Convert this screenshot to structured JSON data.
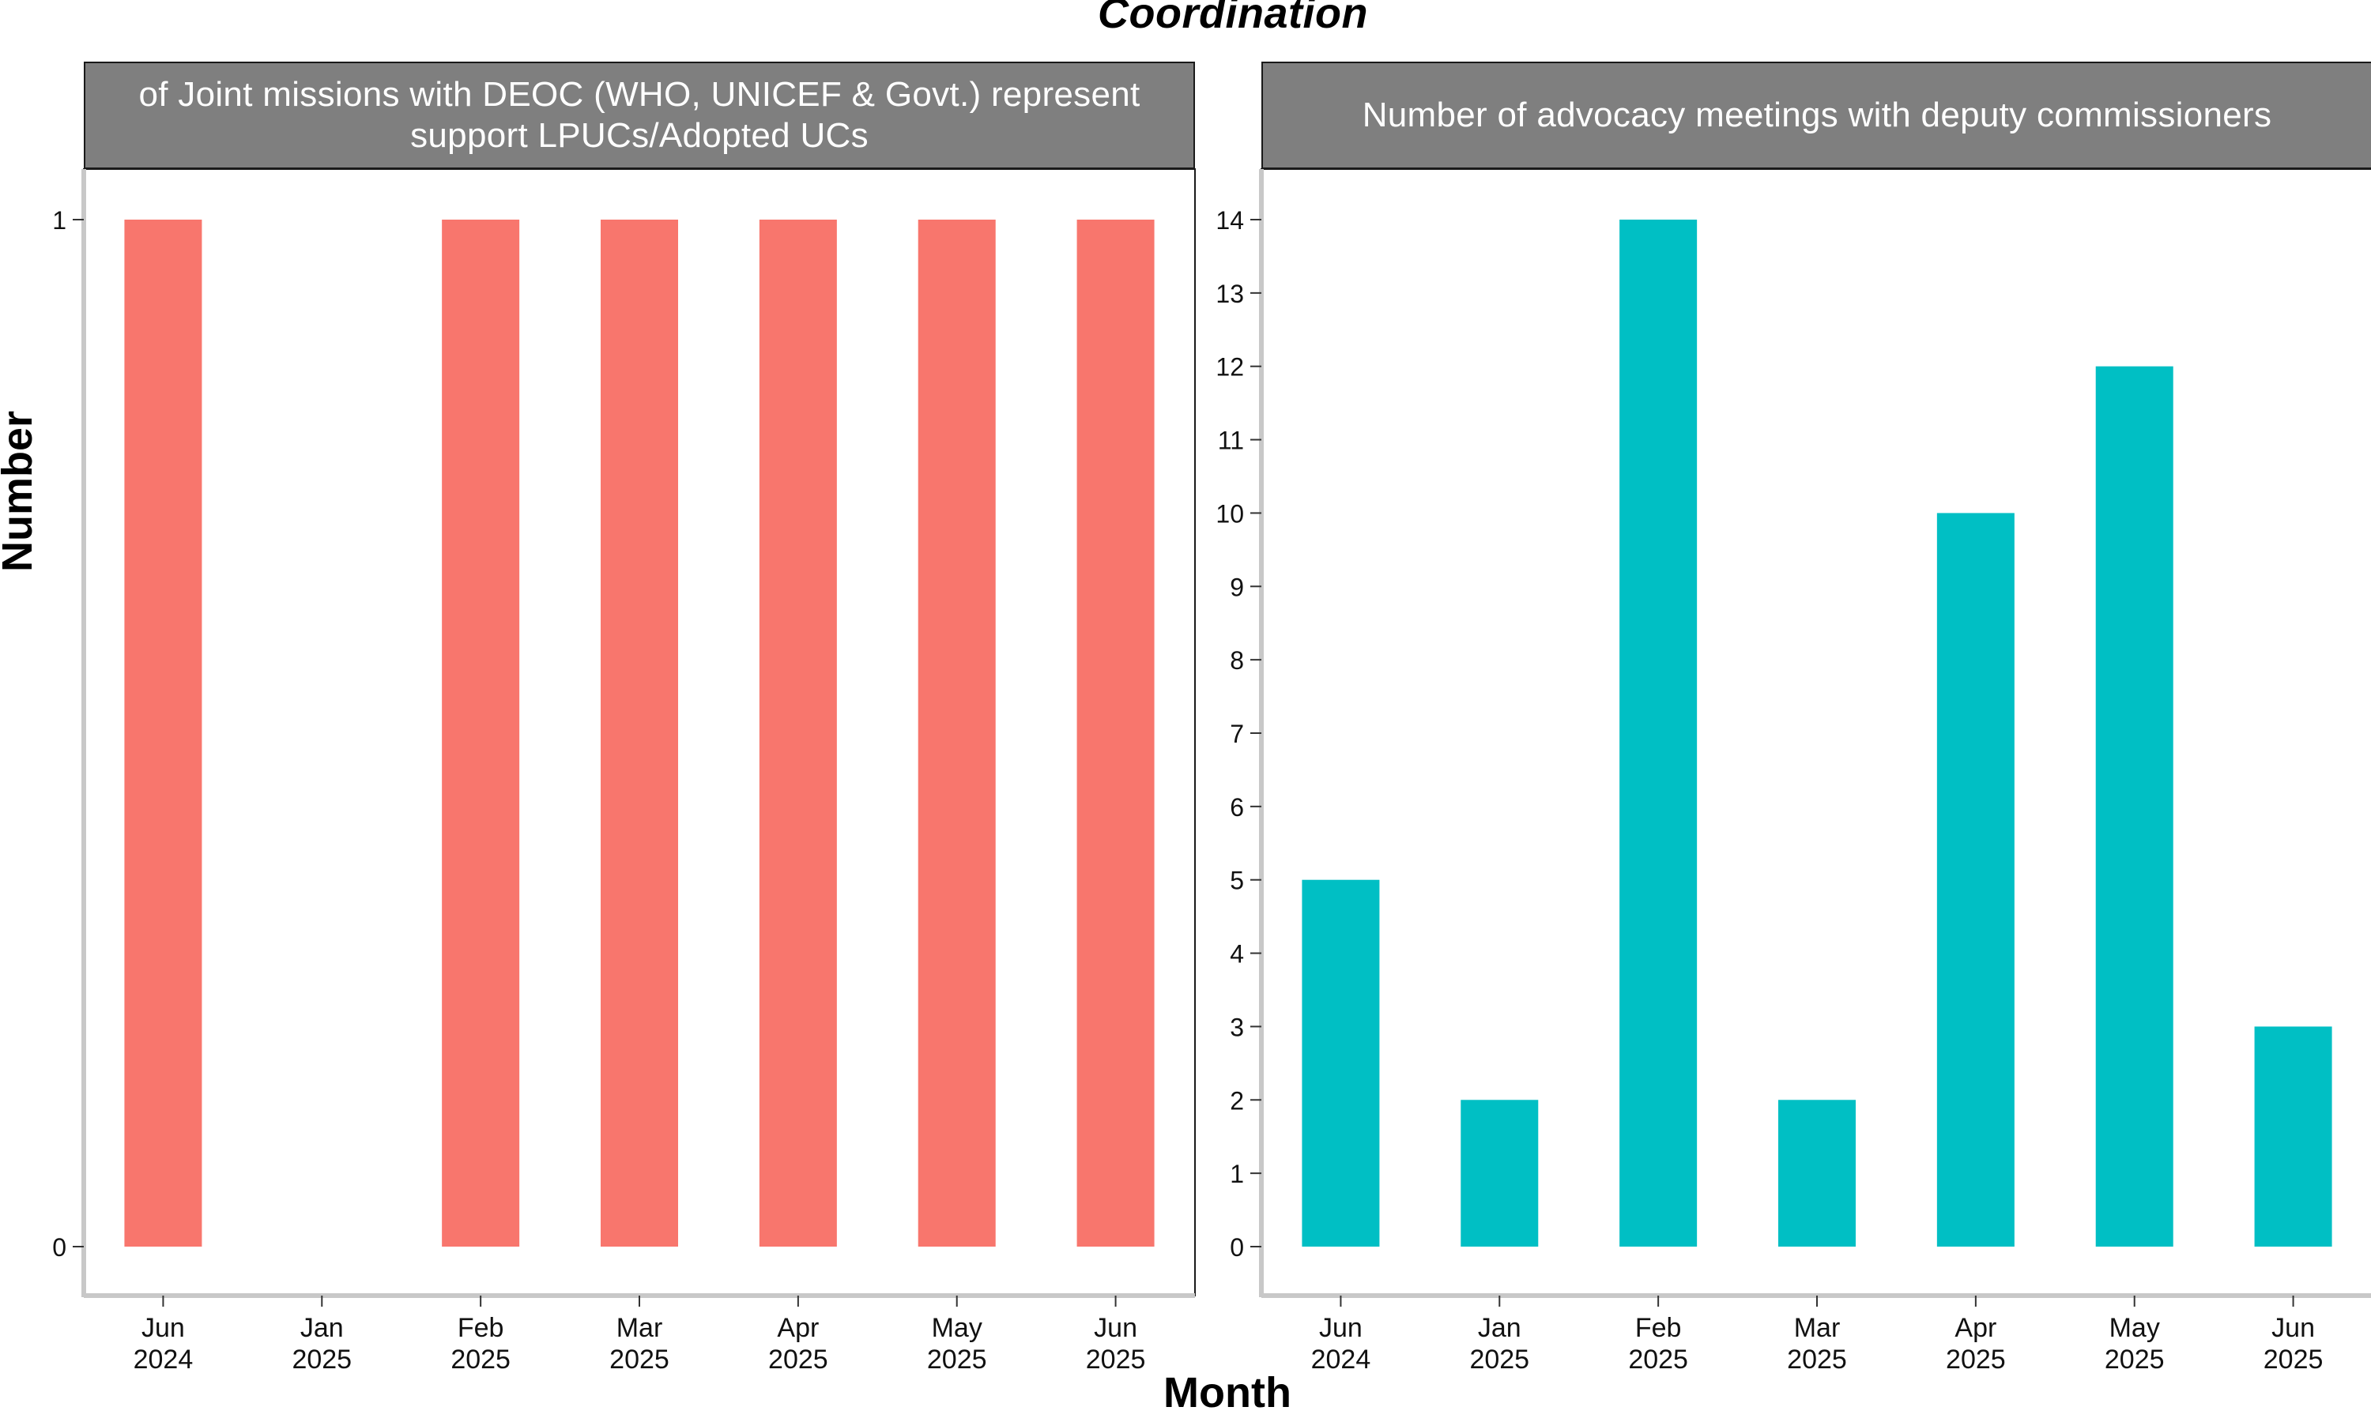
{
  "figure_title": "Coordination",
  "y_axis_title": "Number",
  "x_axis_title": "Month",
  "chart_data": [
    {
      "type": "bar",
      "title_lines": [
        "of Joint missions with DEOC (WHO, UNICEF & Govt.) represent",
        "support LPUCs/Adopted UCs"
      ],
      "categories": [
        "Jun\n2024",
        "Jan\n2025",
        "Feb\n2025",
        "Mar\n2025",
        "Apr\n2025",
        "May\n2025",
        "Jun\n2025"
      ],
      "values": [
        1,
        0,
        1,
        1,
        1,
        1,
        1
      ],
      "ylim": [
        0,
        1
      ],
      "yticks": [
        0,
        1
      ],
      "color": "#F8766D",
      "xlabel": "Month",
      "ylabel": "Number",
      "grid": false
    },
    {
      "type": "bar",
      "title_lines": [
        "Number of advocacy meetings with deputy commissioners"
      ],
      "categories": [
        "Jun\n2024",
        "Jan\n2025",
        "Feb\n2025",
        "Mar\n2025",
        "Apr\n2025",
        "May\n2025",
        "Jun\n2025"
      ],
      "values": [
        5,
        2,
        14,
        2,
        10,
        12,
        3
      ],
      "ylim": [
        0,
        14
      ],
      "yticks": [
        0,
        1,
        2,
        3,
        4,
        5,
        6,
        7,
        8,
        9,
        10,
        11,
        12,
        13,
        14
      ],
      "color": "#00BFC4",
      "xlabel": "Month",
      "ylabel": "Number",
      "grid": false
    }
  ]
}
